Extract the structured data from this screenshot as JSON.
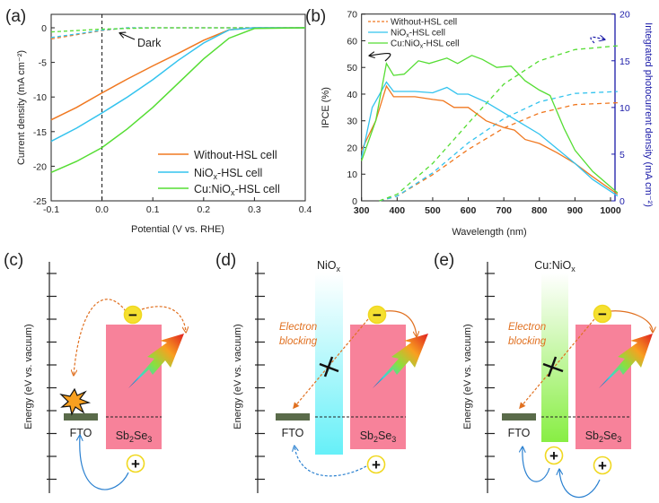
{
  "panels": {
    "a": "(a)",
    "b": "(b)",
    "c": "(c)",
    "d": "(d)",
    "e": "(e)"
  },
  "colors": {
    "without": "#f07820",
    "niox": "#33c3ee",
    "cu": "#55dd33",
    "right_axis": "#1a1aa8"
  },
  "chart_data": [
    {
      "type": "line",
      "title": "(a)",
      "xlabel": "Potential (V vs. RHE)",
      "ylabel": "Current density (mA cm⁻²)",
      "xlim": [
        -0.1,
        0.4
      ],
      "ylim": [
        -25,
        2
      ],
      "xticks": [
        "-0.1",
        "0.0",
        "0.1",
        "0.2",
        "0.3",
        "0.4"
      ],
      "yticks": [
        "0",
        "-5",
        "-10",
        "-15",
        "-20",
        "-25"
      ],
      "annotation": "Dark",
      "legend_position": "bottom-right",
      "series": [
        {
          "name": "Without-HSL cell",
          "key": "without",
          "x": [
            -0.1,
            -0.05,
            0,
            0.05,
            0.1,
            0.15,
            0.2,
            0.25,
            0.3,
            0.4
          ],
          "y": [
            -13.3,
            -11.5,
            -9.4,
            -7.4,
            -5.5,
            -3.7,
            -1.8,
            -0.3,
            0,
            0
          ]
        },
        {
          "name": "NiOx-HSL cell",
          "key": "niox",
          "x": [
            -0.1,
            -0.05,
            0,
            0.05,
            0.1,
            0.15,
            0.2,
            0.25,
            0.3,
            0.4
          ],
          "y": [
            -16.4,
            -14.5,
            -12.3,
            -10,
            -7.5,
            -4.7,
            -2.2,
            -0.3,
            0,
            0
          ]
        },
        {
          "name": "Cu:NiOx-HSL cell",
          "key": "cu",
          "x": [
            -0.1,
            -0.05,
            0,
            0.05,
            0.1,
            0.15,
            0.2,
            0.25,
            0.3,
            0.4
          ],
          "y": [
            -20.9,
            -19.3,
            -17.3,
            -14.6,
            -11.5,
            -8,
            -4.5,
            -1.5,
            -0.1,
            0
          ]
        }
      ],
      "dark_series": [
        {
          "key": "without",
          "x": [
            -0.1,
            -0.05,
            0,
            0.05,
            0.4
          ],
          "y": [
            -1.6,
            -1,
            -0.4,
            0,
            0
          ]
        },
        {
          "key": "niox",
          "x": [
            -0.1,
            -0.05,
            0,
            0.05,
            0.4
          ],
          "y": [
            -1.4,
            -0.9,
            -0.35,
            0,
            0
          ]
        },
        {
          "key": "cu",
          "x": [
            -0.1,
            0,
            0.1,
            0.4
          ],
          "y": [
            -0.6,
            -0.2,
            0,
            0
          ]
        }
      ],
      "vline_x": 0
    },
    {
      "type": "line",
      "title": "(b)",
      "xlabel": "Wavelength (nm)",
      "ylabel": "IPCE (%)",
      "ylabel_right": "Integrated photocurrent density (mA cm⁻²)",
      "xlim": [
        300,
        1020
      ],
      "ylim": [
        0,
        70
      ],
      "ylim_right": [
        0,
        20
      ],
      "xticks": [
        "300",
        "400",
        "500",
        "600",
        "700",
        "800",
        "900",
        "1000"
      ],
      "yticks": [
        "0",
        "10",
        "20",
        "30",
        "40",
        "50",
        "60",
        "70"
      ],
      "yticks_right": [
        "0",
        "5",
        "10",
        "15",
        "20"
      ],
      "legend_position": "top-left",
      "series": [
        {
          "name": "Without-HSL cell",
          "key": "without",
          "x": [
            300,
            340,
            370,
            390,
            450,
            500,
            530,
            560,
            600,
            650,
            700,
            730,
            760,
            800,
            850,
            900,
            950,
            1020
          ],
          "y": [
            19,
            30,
            43,
            39,
            39,
            38,
            37.5,
            35,
            35,
            30,
            27.5,
            26.5,
            23,
            21.5,
            18,
            14,
            9,
            2.5
          ]
        },
        {
          "name": "NiOx-HSL cell",
          "key": "niox",
          "x": [
            300,
            330,
            370,
            390,
            450,
            500,
            540,
            570,
            600,
            650,
            700,
            750,
            800,
            850,
            900,
            950,
            1020
          ],
          "y": [
            16,
            35,
            44.5,
            41,
            41,
            40.5,
            42.5,
            40,
            40,
            37,
            33,
            29,
            25,
            19.5,
            14,
            8,
            1.8
          ]
        },
        {
          "name": "Cu:NiOx-HSL cell",
          "key": "cu",
          "x": [
            300,
            340,
            370,
            390,
            420,
            460,
            490,
            540,
            570,
            610,
            640,
            680,
            720,
            760,
            800,
            830,
            870,
            900,
            950,
            1020
          ],
          "y": [
            15,
            30,
            51.5,
            47,
            47.5,
            52.5,
            51.5,
            53.5,
            51.5,
            54.5,
            53,
            50,
            50.5,
            45,
            41.5,
            39.5,
            27,
            19,
            11,
            3
          ]
        }
      ],
      "integrated_series": [
        {
          "key": "without",
          "x": [
            350,
            400,
            500,
            600,
            700,
            800,
            900,
            1020
          ],
          "y": [
            0,
            0.5,
            2.8,
            5.5,
            7.8,
            9.4,
            10.3,
            10.5
          ]
        },
        {
          "key": "niox",
          "x": [
            350,
            400,
            500,
            600,
            700,
            800,
            900,
            1020
          ],
          "y": [
            0,
            0.5,
            3,
            6.2,
            8.8,
            10.6,
            11.5,
            11.7
          ]
        },
        {
          "key": "cu",
          "x": [
            350,
            400,
            500,
            600,
            700,
            800,
            900,
            1020
          ],
          "y": [
            0,
            0.7,
            4,
            8.3,
            12.5,
            15,
            16.2,
            16.6
          ]
        }
      ]
    }
  ],
  "legend": {
    "without": "Without-HSL cell",
    "niox_pre": "NiO",
    "niox_sub": "x",
    "niox_post": "-HSL cell",
    "cu_pre": "Cu:NiO",
    "cu_sub": "x",
    "cu_post": "-HSL cell"
  },
  "diagrams": {
    "energy_axis": "Energy (eV vs. vacuum)",
    "fto": "FTO",
    "sb_pre": "Sb",
    "sb_sub1": "2",
    "sb_mid": "Se",
    "sb_sub2": "3",
    "niox_pre": "NiO",
    "niox_sub": "x",
    "cuniox_pre": "Cu:NiO",
    "cuniox_sub": "x",
    "electron_blocking_1": "Electron",
    "electron_blocking_2": "blocking",
    "minus": "−",
    "plus": "+"
  }
}
